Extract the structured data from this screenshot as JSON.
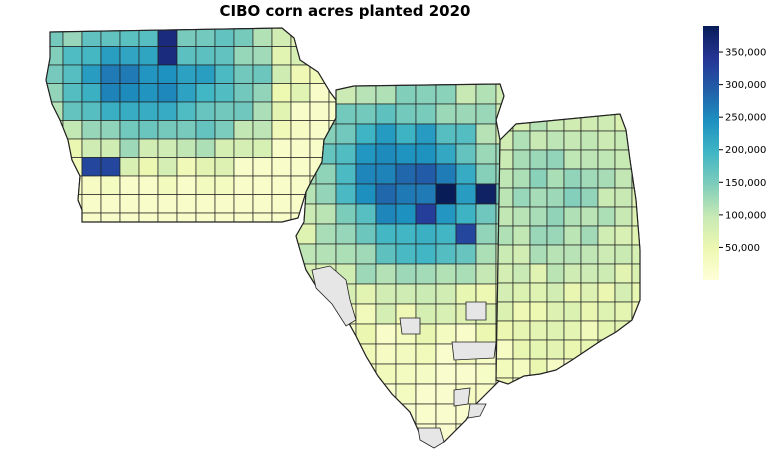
{
  "title": "CIBO corn acres planted 2020",
  "colorbar": {
    "ticks": [
      "350,000",
      "300,000",
      "250,000",
      "200,000",
      "150,000",
      "100,000",
      "50,000"
    ],
    "tick_values": [
      350000,
      300000,
      250000,
      200000,
      150000,
      100000,
      50000
    ],
    "min": 0,
    "max": 390000,
    "colors": [
      "#ffffd9",
      "#edf8b1",
      "#c7e9b4",
      "#7fcdbb",
      "#41b6c4",
      "#1d91c0",
      "#225ea8",
      "#253494",
      "#081d58"
    ]
  },
  "colors": {
    "county_border": "#222222",
    "no_data": "#e6e6e6",
    "background": "#ffffff"
  },
  "chart_data": {
    "type": "heatmap",
    "title": "CIBO corn acres planted 2020",
    "colorbar_range": [
      0,
      390000
    ],
    "regions": [
      "Iowa",
      "Illinois",
      "Indiana"
    ],
    "notable_values": [
      {
        "region": "Iowa",
        "area": "north-central county (darkest)",
        "value": 360000
      },
      {
        "region": "Iowa",
        "area": "west-central county",
        "value": 320000
      },
      {
        "region": "Illinois",
        "area": "central counties (darkest pair)",
        "value": 390000
      },
      {
        "region": "Illinois",
        "area": "central counties",
        "value": 330000
      }
    ]
  }
}
